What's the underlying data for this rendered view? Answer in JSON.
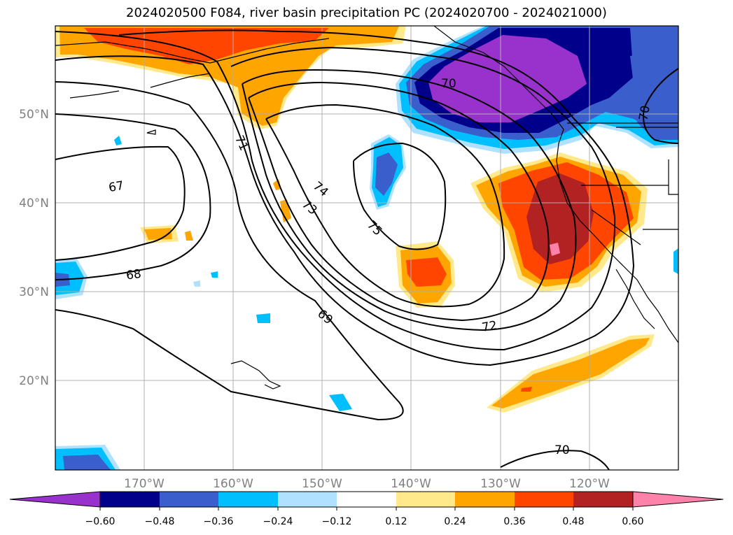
{
  "title": "2024020500 F084, river basin precipitation PC (2024020700 - 2024021000)",
  "map": {
    "lon_range": [
      -180,
      -110
    ],
    "lat_range": [
      10,
      60
    ],
    "gridlines": true,
    "lon_labels": [
      "170°W",
      "160°W",
      "150°W",
      "140°W",
      "130°W",
      "120°W"
    ],
    "lat_labels": [
      "50°N",
      "40°N",
      "30°N",
      "20°N"
    ],
    "contour_labels": [
      "67",
      "68",
      "69",
      "70",
      "70",
      "71",
      "72",
      "73",
      "74",
      "75",
      "70"
    ]
  },
  "colorbar": {
    "ticks": [
      "−0.60",
      "−0.48",
      "−0.36",
      "−0.24",
      "−0.12",
      "0.12",
      "0.24",
      "0.36",
      "0.48",
      "0.60"
    ],
    "colors": {
      "lt_neg060": "#9932cc",
      "neg060_neg048": "#00008b",
      "neg048_neg036": "#3a5fcd",
      "neg036_neg024": "#00bfff",
      "neg024_neg012": "#b0e2ff",
      "neg012_012": "#ffffff",
      "p012_p024": "#ffe98a",
      "p024_p036": "#ffa500",
      "p036_p048": "#ff4500",
      "p048_p060": "#b22222",
      "gt_p060": "#ff82ab"
    }
  }
}
